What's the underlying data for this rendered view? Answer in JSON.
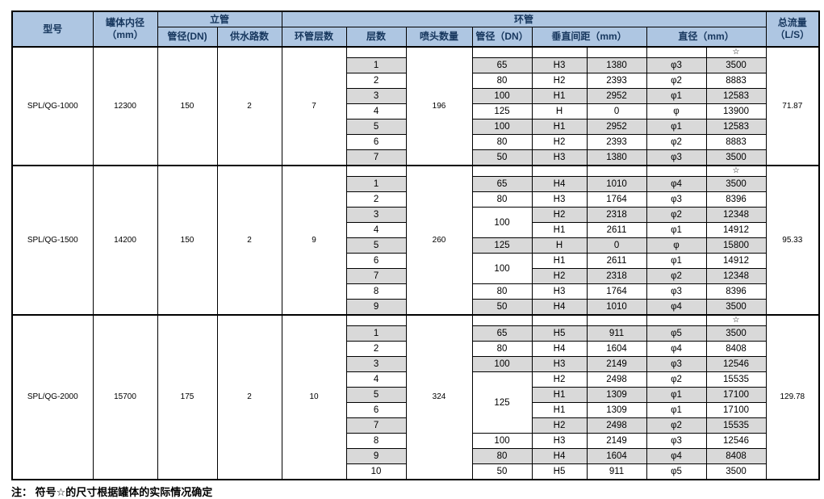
{
  "header": {
    "model": "型号",
    "tank_diameter_line1": "罐体内径",
    "tank_diameter_line2": "（mm）",
    "riser_group": "立管",
    "riser_dn": "管径(DN)",
    "supply_lines": "供水路数",
    "ring_group": "环管",
    "ring_layer_count": "环管层数",
    "layer_no": "层数",
    "nozzle_count": "喷头数量",
    "ring_dn": "管径（DN）",
    "vertical_spacing": "垂直间距（mm）",
    "diameter": "直径（mm）",
    "total_flow_line1": "总流量",
    "total_flow_line2": "（L/S）"
  },
  "star_symbol": "☆",
  "note": "注： 符号☆的尺寸根据罐体的实际情况确定",
  "colors": {
    "header_bg": "#aec6e2",
    "header_text": "#17375e",
    "row_shade": "#d9d9d9",
    "border": "#000000"
  },
  "blocks": [
    {
      "model": "SPL/QG-1000",
      "tank_inner_diameter": "12300",
      "riser_dn": "150",
      "supply_lines": "2",
      "ring_layer_count": "7",
      "nozzle_count": "196",
      "total_flow": "71.87",
      "layers": [
        {
          "no": "1",
          "dn": "65",
          "dn_span": 1,
          "h": "H3",
          "spacing": "1380",
          "phi": "φ3",
          "diameter": "3500"
        },
        {
          "no": "2",
          "dn": "80",
          "dn_span": 1,
          "h": "H2",
          "spacing": "2393",
          "phi": "φ2",
          "diameter": "8883"
        },
        {
          "no": "3",
          "dn": "100",
          "dn_span": 1,
          "h": "H1",
          "spacing": "2952",
          "phi": "φ1",
          "diameter": "12583"
        },
        {
          "no": "4",
          "dn": "125",
          "dn_span": 1,
          "h": "H",
          "spacing": "0",
          "phi": "φ",
          "diameter": "13900"
        },
        {
          "no": "5",
          "dn": "100",
          "dn_span": 1,
          "h": "H1",
          "spacing": "2952",
          "phi": "φ1",
          "diameter": "12583"
        },
        {
          "no": "6",
          "dn": "80",
          "dn_span": 1,
          "h": "H2",
          "spacing": "2393",
          "phi": "φ2",
          "diameter": "8883"
        },
        {
          "no": "7",
          "dn": "50",
          "dn_span": 1,
          "h": "H3",
          "spacing": "1380",
          "phi": "φ3",
          "diameter": "3500"
        }
      ]
    },
    {
      "model": "SPL/QG-1500",
      "tank_inner_diameter": "14200",
      "riser_dn": "150",
      "supply_lines": "2",
      "ring_layer_count": "9",
      "nozzle_count": "260",
      "total_flow": "95.33",
      "layers": [
        {
          "no": "1",
          "dn": "65",
          "dn_span": 1,
          "h": "H4",
          "spacing": "1010",
          "phi": "φ4",
          "diameter": "3500"
        },
        {
          "no": "2",
          "dn": "80",
          "dn_span": 1,
          "h": "H3",
          "spacing": "1764",
          "phi": "φ3",
          "diameter": "8396"
        },
        {
          "no": "3",
          "dn": "100",
          "dn_span": 2,
          "h": "H2",
          "spacing": "2318",
          "phi": "φ2",
          "diameter": "12348"
        },
        {
          "no": "4",
          "dn": null,
          "dn_span": 0,
          "h": "H1",
          "spacing": "2611",
          "phi": "φ1",
          "diameter": "14912"
        },
        {
          "no": "5",
          "dn": "125",
          "dn_span": 1,
          "h": "H",
          "spacing": "0",
          "phi": "φ",
          "diameter": "15800"
        },
        {
          "no": "6",
          "dn": "100",
          "dn_span": 2,
          "h": "H1",
          "spacing": "2611",
          "phi": "φ1",
          "diameter": "14912"
        },
        {
          "no": "7",
          "dn": null,
          "dn_span": 0,
          "h": "H2",
          "spacing": "2318",
          "phi": "φ2",
          "diameter": "12348"
        },
        {
          "no": "8",
          "dn": "80",
          "dn_span": 1,
          "h": "H3",
          "spacing": "1764",
          "phi": "φ3",
          "diameter": "8396"
        },
        {
          "no": "9",
          "dn": "50",
          "dn_span": 1,
          "h": "H4",
          "spacing": "1010",
          "phi": "φ4",
          "diameter": "3500"
        }
      ]
    },
    {
      "model": "SPL/QG-2000",
      "tank_inner_diameter": "15700",
      "riser_dn": "175",
      "supply_lines": "2",
      "ring_layer_count": "10",
      "nozzle_count": "324",
      "total_flow": "129.78",
      "layers": [
        {
          "no": "1",
          "dn": "65",
          "dn_span": 1,
          "h": "H5",
          "spacing": "911",
          "phi": "φ5",
          "diameter": "3500"
        },
        {
          "no": "2",
          "dn": "80",
          "dn_span": 1,
          "h": "H4",
          "spacing": "1604",
          "phi": "φ4",
          "diameter": "8408"
        },
        {
          "no": "3",
          "dn": "100",
          "dn_span": 1,
          "h": "H3",
          "spacing": "2149",
          "phi": "φ3",
          "diameter": "12546"
        },
        {
          "no": "4",
          "dn": "125",
          "dn_span": 4,
          "h": "H2",
          "spacing": "2498",
          "phi": "φ2",
          "diameter": "15535"
        },
        {
          "no": "5",
          "dn": null,
          "dn_span": 0,
          "h": "H1",
          "spacing": "1309",
          "phi": "φ1",
          "diameter": "17100"
        },
        {
          "no": "6",
          "dn": null,
          "dn_span": 0,
          "h": "H1",
          "spacing": "1309",
          "phi": "φ1",
          "diameter": "17100"
        },
        {
          "no": "7",
          "dn": null,
          "dn_span": 0,
          "h": "H2",
          "spacing": "2498",
          "phi": "φ2",
          "diameter": "15535"
        },
        {
          "no": "8",
          "dn": "100",
          "dn_span": 1,
          "h": "H3",
          "spacing": "2149",
          "phi": "φ3",
          "diameter": "12546"
        },
        {
          "no": "9",
          "dn": "80",
          "dn_span": 1,
          "h": "H4",
          "spacing": "1604",
          "phi": "φ4",
          "diameter": "8408"
        },
        {
          "no": "10",
          "dn": "50",
          "dn_span": 1,
          "h": "H5",
          "spacing": "911",
          "phi": "φ5",
          "diameter": "3500"
        }
      ]
    }
  ]
}
